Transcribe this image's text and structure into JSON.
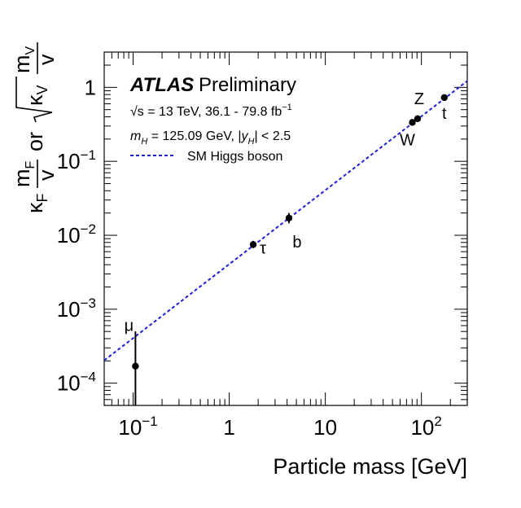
{
  "chart_data": {
    "type": "scatter",
    "xscale": "log",
    "yscale": "log",
    "xlim": [
      0.05,
      300
    ],
    "ylim": [
      5e-05,
      3
    ],
    "xlabel": "Particle mass [GeV]",
    "ylabel": {
      "left_kappa": "κ",
      "left_sub": "F",
      "left_num": "m",
      "left_num_sub": "F",
      "left_den": "v",
      "or": "or",
      "right_kappa": "κ",
      "right_sub": "V",
      "right_num": "m",
      "right_num_sub": "V",
      "right_den": "v"
    },
    "x_ticks": [
      {
        "value": 0.1,
        "base": "10",
        "exp": "−1"
      },
      {
        "value": 1,
        "label": "1"
      },
      {
        "value": 10,
        "label": "10"
      },
      {
        "value": 100,
        "base": "10",
        "exp": "2"
      }
    ],
    "y_ticks": [
      {
        "value": 0.0001,
        "base": "10",
        "exp": "−4"
      },
      {
        "value": 0.001,
        "base": "10",
        "exp": "−3"
      },
      {
        "value": 0.01,
        "base": "10",
        "exp": "−2"
      },
      {
        "value": 0.1,
        "base": "10",
        "exp": "−1"
      },
      {
        "value": 1,
        "label": "1"
      }
    ],
    "points": [
      {
        "name": "μ",
        "x": 0.1057,
        "y": 0.00017,
        "ylo": 5e-05,
        "yhi": 0.0005
      },
      {
        "name": "τ",
        "x": 1.777,
        "y": 0.0075,
        "ylo": 0.0067,
        "yhi": 0.0084
      },
      {
        "name": "b",
        "x": 4.18,
        "y": 0.0171,
        "ylo": 0.0145,
        "yhi": 0.02
      },
      {
        "name": "W",
        "x": 80.4,
        "y": 0.336,
        "ylo": 0.315,
        "yhi": 0.357
      },
      {
        "name": "Z",
        "x": 91.19,
        "y": 0.377,
        "ylo": 0.355,
        "yhi": 0.399
      },
      {
        "name": "t",
        "x": 173.0,
        "y": 0.728,
        "ylo": 0.68,
        "yhi": 0.775
      }
    ],
    "series": [
      {
        "name": "SM Higgs boson",
        "type": "line",
        "slope_over_vev": 246,
        "color": "#1f1fd6",
        "style": "dashed"
      }
    ],
    "annotations": {
      "atlas": "ATLAS",
      "preliminary": "Preliminary",
      "energy_sqrt": "√s",
      "energy_text": " = 13 TeV, 36.1 - 79.8 fb",
      "energy_exp": "−1",
      "mass_m": "m",
      "mass_sub": "H",
      "mass_text": " = 125.09 GeV, |",
      "mass_y": "y",
      "mass_y_sub": "H",
      "mass_text2": "| < 2.5"
    },
    "legend": {
      "placement": "top-left",
      "label": "SM Higgs boson"
    }
  }
}
